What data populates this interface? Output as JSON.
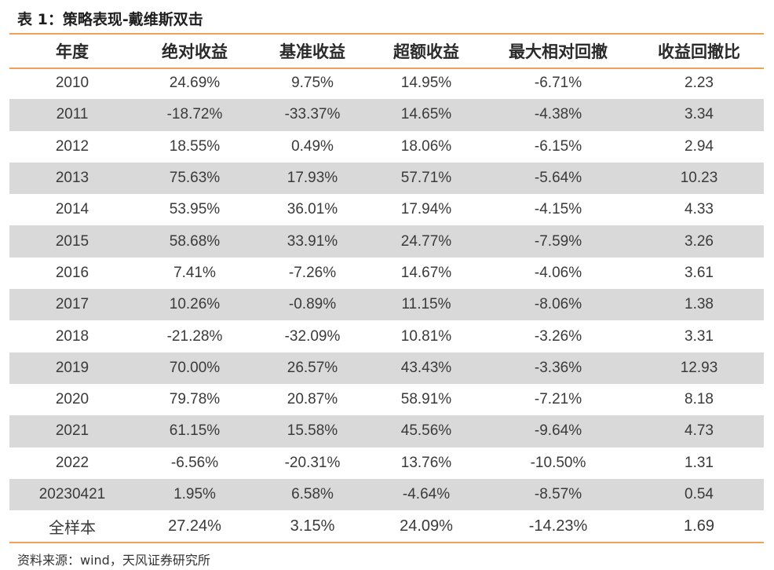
{
  "title": "表 1：策略表现-戴维斯双击",
  "source": "资料来源：wind，天风证券研究所",
  "colors": {
    "rule": "#f0a05a",
    "shade": "#d9d9d9"
  },
  "chart_data": {
    "type": "table",
    "columns": [
      "年度",
      "绝对收益",
      "基准收益",
      "超额收益",
      "最大相对回撤",
      "收益回撤比"
    ],
    "rows": [
      [
        "2010",
        "24.69%",
        "9.75%",
        "14.95%",
        "-6.71%",
        "2.23"
      ],
      [
        "2011",
        "-18.72%",
        "-33.37%",
        "14.65%",
        "-4.38%",
        "3.34"
      ],
      [
        "2012",
        "18.55%",
        "0.49%",
        "18.06%",
        "-6.15%",
        "2.94"
      ],
      [
        "2013",
        "75.63%",
        "17.93%",
        "57.71%",
        "-5.64%",
        "10.23"
      ],
      [
        "2014",
        "53.95%",
        "36.01%",
        "17.94%",
        "-4.15%",
        "4.33"
      ],
      [
        "2015",
        "58.68%",
        "33.91%",
        "24.77%",
        "-7.59%",
        "3.26"
      ],
      [
        "2016",
        "7.41%",
        "-7.26%",
        "14.67%",
        "-4.06%",
        "3.61"
      ],
      [
        "2017",
        "10.26%",
        "-0.89%",
        "11.15%",
        "-8.06%",
        "1.38"
      ],
      [
        "2018",
        "-21.28%",
        "-32.09%",
        "10.81%",
        "-3.26%",
        "3.31"
      ],
      [
        "2019",
        "70.00%",
        "26.57%",
        "43.43%",
        "-3.36%",
        "12.93"
      ],
      [
        "2020",
        "79.78%",
        "20.87%",
        "58.91%",
        "-7.21%",
        "8.18"
      ],
      [
        "2021",
        "61.15%",
        "15.58%",
        "45.56%",
        "-9.64%",
        "4.73"
      ],
      [
        "2022",
        "-6.56%",
        "-20.31%",
        "13.76%",
        "-10.50%",
        "1.31"
      ],
      [
        "20230421",
        "1.95%",
        "6.58%",
        "-4.64%",
        "-8.57%",
        "0.54"
      ],
      [
        "全样本",
        "27.24%",
        "3.15%",
        "24.09%",
        "-14.23%",
        "1.69"
      ]
    ]
  }
}
